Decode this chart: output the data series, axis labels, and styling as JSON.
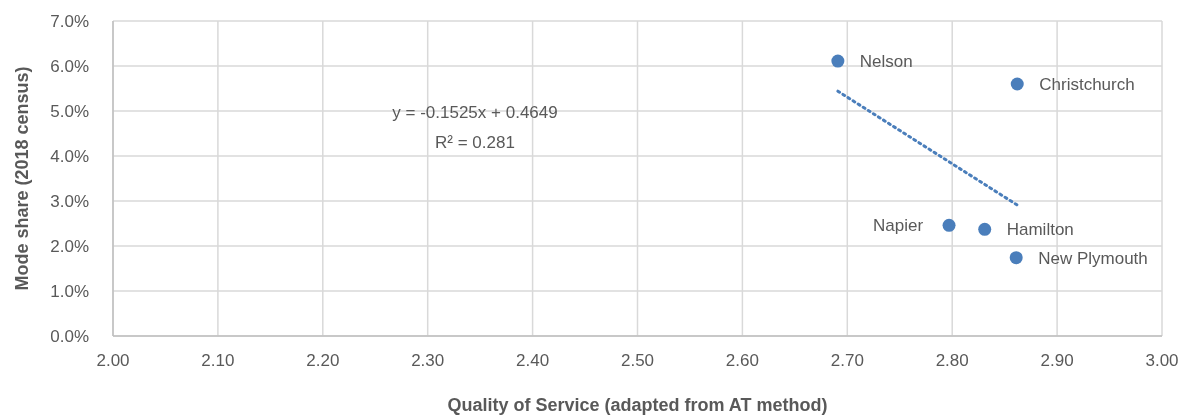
{
  "chart_data": {
    "type": "scatter",
    "xlabel": "Quality of Service (adapted from AT method)",
    "ylabel": "Mode share (2018 census)",
    "xlim": [
      2,
      3
    ],
    "ylim": [
      0,
      7
    ],
    "xticks": [
      {
        "value": 2,
        "label": "2.00"
      },
      {
        "value": 2.1,
        "label": "2.10"
      },
      {
        "value": 2.2,
        "label": "2.20"
      },
      {
        "value": 2.3,
        "label": "2.30"
      },
      {
        "value": 2.4,
        "label": "2.40"
      },
      {
        "value": 2.5,
        "label": "2.50"
      },
      {
        "value": 2.6,
        "label": "2.60"
      },
      {
        "value": 2.7,
        "label": "2.70"
      },
      {
        "value": 2.8,
        "label": "2.80"
      },
      {
        "value": 2.9,
        "label": "2.90"
      },
      {
        "value": 3,
        "label": "3.00"
      }
    ],
    "yticks": [
      {
        "value": 0,
        "label": "0.0%"
      },
      {
        "value": 1,
        "label": "1.0%"
      },
      {
        "value": 2,
        "label": "2.0%"
      },
      {
        "value": 3,
        "label": "3.0%"
      },
      {
        "value": 4,
        "label": "4.0%"
      },
      {
        "value": 5,
        "label": "5.0%"
      },
      {
        "value": 6,
        "label": "6.0%"
      },
      {
        "value": 7,
        "label": "7.0%"
      }
    ],
    "grid": true,
    "marker": "circle",
    "series": [
      {
        "name": "Nelson",
        "color": "#4a7ebb",
        "x": [
          2.691
        ],
        "values": [
          6.11
        ]
      },
      {
        "name": "Christchurch",
        "color": "#4a7ebb",
        "x": [
          2.862
        ],
        "values": [
          5.6
        ]
      },
      {
        "name": "Napier",
        "color": "#4a7ebb",
        "x": [
          2.797
        ],
        "values": [
          2.46
        ]
      },
      {
        "name": "Hamilton",
        "color": "#4a7ebb",
        "x": [
          2.831
        ],
        "values": [
          2.37
        ]
      },
      {
        "name": "New Plymouth",
        "color": "#4a7ebb",
        "x": [
          2.861
        ],
        "values": [
          1.74
        ]
      },
      {
        "type": "line",
        "color": "#4a7ebb",
        "line_style": "dotted",
        "marker": "none",
        "x": [
          2.691,
          2.862
        ],
        "values": [
          5.44,
          2.91
        ]
      }
    ],
    "annotations": [
      "y = -0.1525x + 0.4649",
      "R² = 0.281"
    ]
  }
}
